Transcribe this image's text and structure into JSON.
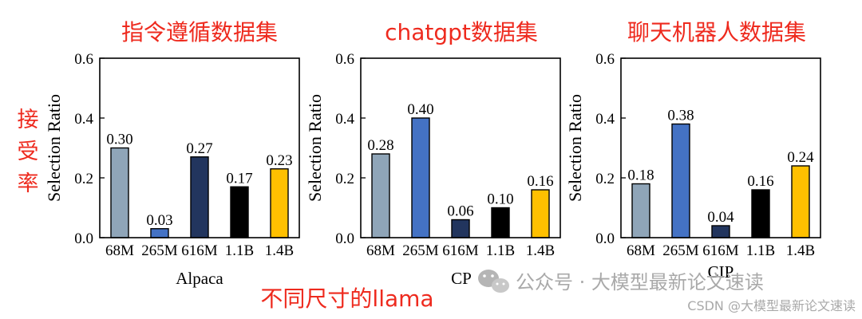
{
  "annotations": {
    "side_label_chars": [
      "接",
      "受",
      "率"
    ],
    "bottom_caption": "不同尺寸的llama",
    "watermark_main": "公众号 · 大模型最新论文速读",
    "watermark_csdn": "CSDN @大模型最新论文速读"
  },
  "colors": {
    "annotation_red": "#ee2a1e",
    "bar_colors": [
      "#8fa5b8",
      "#4472c4",
      "#22355e",
      "#000000",
      "#ffc000"
    ],
    "watermark_gray": "#a9a9a9"
  },
  "chart_data": [
    {
      "type": "bar",
      "title": "指令遵循数据集",
      "xlabel": "Alpaca",
      "ylabel": "Selection Ratio",
      "categories": [
        "68M",
        "265M",
        "616M",
        "1.1B",
        "1.4B"
      ],
      "values": [
        0.3,
        0.03,
        0.27,
        0.17,
        0.23
      ],
      "value_labels": [
        "0.30",
        "0.03",
        "0.27",
        "0.17",
        "0.23"
      ],
      "ylim": [
        0,
        0.6
      ],
      "yticks": [
        "0.0",
        "0.2",
        "0.4",
        "0.6"
      ],
      "ytick_values": [
        0,
        0.2,
        0.4,
        0.6
      ],
      "grid": false
    },
    {
      "type": "bar",
      "title": "chatgpt数据集",
      "xlabel": "CP",
      "ylabel": "Selection Ratio",
      "categories": [
        "68M",
        "265M",
        "616M",
        "1.1B",
        "1.4B"
      ],
      "values": [
        0.28,
        0.4,
        0.06,
        0.1,
        0.16
      ],
      "value_labels": [
        "0.28",
        "0.40",
        "0.06",
        "0.10",
        "0.16"
      ],
      "ylim": [
        0,
        0.6
      ],
      "yticks": [
        "0.0",
        "0.2",
        "0.4",
        "0.6"
      ],
      "ytick_values": [
        0,
        0.2,
        0.4,
        0.6
      ],
      "grid": false
    },
    {
      "type": "bar",
      "title": "聊天机器人数据集",
      "xlabel": "CIP",
      "ylabel": "Selection Ratio",
      "categories": [
        "68M",
        "265M",
        "616M",
        "1.1B",
        "1.4B"
      ],
      "values": [
        0.18,
        0.38,
        0.04,
        0.16,
        0.24
      ],
      "value_labels": [
        "0.18",
        "0.38",
        "0.04",
        "0.16",
        "0.24"
      ],
      "ylim": [
        0,
        0.6
      ],
      "yticks": [
        "0.0",
        "0.2",
        "0.4",
        "0.6"
      ],
      "ytick_values": [
        0,
        0.2,
        0.4,
        0.6
      ],
      "grid": false
    }
  ]
}
